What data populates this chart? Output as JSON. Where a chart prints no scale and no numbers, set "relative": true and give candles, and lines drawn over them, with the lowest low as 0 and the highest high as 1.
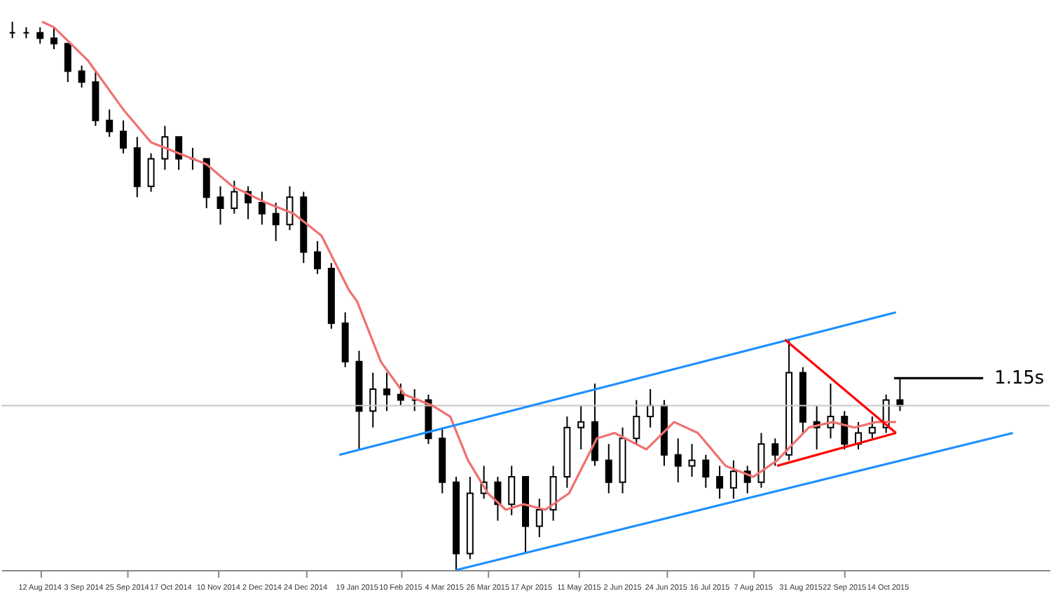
{
  "chart_data": {
    "type": "candlestick",
    "relative": true,
    "grid": false,
    "xlim": [
      "2014-07-27",
      "2015-12-31"
    ],
    "xticks": [
      {
        "value": "2014-08-12",
        "label": "12 Aug 2014"
      },
      {
        "value": "2014-09-03",
        "label": "3 Sep 2014"
      },
      {
        "value": "2014-09-25",
        "label": "25 Sep 2014"
      },
      {
        "value": "2014-10-17",
        "label": "17 Oct 2014"
      },
      {
        "value": "2014-11-10",
        "label": "10 Nov 2014"
      },
      {
        "value": "2014-12-02",
        "label": "2 Dec 2014"
      },
      {
        "value": "2014-12-24",
        "label": "24 Dec 2014"
      },
      {
        "value": "2015-01-19",
        "label": "19 Jan 2015"
      },
      {
        "value": "2015-02-10",
        "label": "10 Feb 2015"
      },
      {
        "value": "2015-03-04",
        "label": "4 Mar 2015"
      },
      {
        "value": "2015-03-26",
        "label": "26 Mar 2015"
      },
      {
        "value": "2015-04-17",
        "label": "17 Apr 2015"
      },
      {
        "value": "2015-05-11",
        "label": "11 May 2015"
      },
      {
        "value": "2015-06-02",
        "label": "2 Jun 2015"
      },
      {
        "value": "2015-06-24",
        "label": "24 Jun 2015"
      },
      {
        "value": "2015-07-16",
        "label": "16 Jul 2015"
      },
      {
        "value": "2015-08-07",
        "label": "7 Aug 2015"
      },
      {
        "value": "2015-08-31",
        "label": "31 Aug 2015"
      },
      {
        "value": "2015-09-22",
        "label": "22 Sep 2015"
      },
      {
        "value": "2015-10-14",
        "label": "14 Oct 2015"
      }
    ],
    "x": [
      "2014-07-29",
      "2014-08-05",
      "2014-08-12",
      "2014-08-19",
      "2014-08-26",
      "2014-09-02",
      "2014-09-09",
      "2014-09-16",
      "2014-09-23",
      "2014-09-30",
      "2014-10-07",
      "2014-10-14",
      "2014-10-21",
      "2014-10-28",
      "2014-11-04",
      "2014-11-11",
      "2014-11-18",
      "2014-11-25",
      "2014-12-02",
      "2014-12-09",
      "2014-12-16",
      "2014-12-23",
      "2014-12-30",
      "2015-01-06",
      "2015-01-13",
      "2015-01-20",
      "2015-01-27",
      "2015-02-03",
      "2015-02-10",
      "2015-02-17",
      "2015-02-24",
      "2015-03-03",
      "2015-03-10",
      "2015-03-17",
      "2015-03-24",
      "2015-03-31",
      "2015-04-07",
      "2015-04-14",
      "2015-04-21",
      "2015-04-28",
      "2015-05-05",
      "2015-05-12",
      "2015-05-19",
      "2015-05-26",
      "2015-06-02",
      "2015-06-09",
      "2015-06-16",
      "2015-06-23",
      "2015-06-30",
      "2015-07-07",
      "2015-07-14",
      "2015-07-21",
      "2015-07-28",
      "2015-08-04",
      "2015-08-11",
      "2015-08-18",
      "2015-08-25",
      "2015-09-01",
      "2015-09-08",
      "2015-09-15",
      "2015-09-22",
      "2015-09-29",
      "2015-10-06",
      "2015-10-13",
      "2015-10-20"
    ],
    "ohlc": [
      [
        0.98,
        1.0,
        0.97,
        0.98
      ],
      [
        0.98,
        0.99,
        0.97,
        0.98
      ],
      [
        0.98,
        0.99,
        0.96,
        0.97
      ],
      [
        0.97,
        0.99,
        0.95,
        0.96
      ],
      [
        0.96,
        0.96,
        0.89,
        0.91
      ],
      [
        0.91,
        0.92,
        0.88,
        0.89
      ],
      [
        0.89,
        0.91,
        0.81,
        0.82
      ],
      [
        0.82,
        0.84,
        0.79,
        0.8
      ],
      [
        0.8,
        0.82,
        0.76,
        0.77
      ],
      [
        0.77,
        0.79,
        0.68,
        0.7
      ],
      [
        0.7,
        0.76,
        0.69,
        0.75
      ],
      [
        0.75,
        0.81,
        0.73,
        0.79
      ],
      [
        0.79,
        0.79,
        0.73,
        0.75
      ],
      [
        0.75,
        0.77,
        0.73,
        0.75
      ],
      [
        0.75,
        0.75,
        0.66,
        0.68
      ],
      [
        0.68,
        0.7,
        0.63,
        0.66
      ],
      [
        0.66,
        0.71,
        0.65,
        0.69
      ],
      [
        0.69,
        0.7,
        0.64,
        0.67
      ],
      [
        0.67,
        0.69,
        0.63,
        0.65
      ],
      [
        0.65,
        0.67,
        0.6,
        0.63
      ],
      [
        0.63,
        0.7,
        0.62,
        0.68
      ],
      [
        0.68,
        0.69,
        0.56,
        0.58
      ],
      [
        0.58,
        0.6,
        0.54,
        0.55
      ],
      [
        0.55,
        0.56,
        0.44,
        0.45
      ],
      [
        0.45,
        0.47,
        0.37,
        0.38
      ],
      [
        0.38,
        0.4,
        0.22,
        0.29
      ],
      [
        0.29,
        0.36,
        0.26,
        0.33
      ],
      [
        0.33,
        0.36,
        0.29,
        0.32
      ],
      [
        0.32,
        0.34,
        0.3,
        0.31
      ],
      [
        0.31,
        0.33,
        0.29,
        0.31
      ],
      [
        0.31,
        0.32,
        0.23,
        0.24
      ],
      [
        0.24,
        0.26,
        0.14,
        0.16
      ],
      [
        0.16,
        0.17,
        0.0,
        0.03
      ],
      [
        0.03,
        0.17,
        0.02,
        0.14
      ],
      [
        0.14,
        0.19,
        0.13,
        0.16
      ],
      [
        0.16,
        0.17,
        0.09,
        0.12
      ],
      [
        0.12,
        0.19,
        0.1,
        0.17
      ],
      [
        0.17,
        0.17,
        0.03,
        0.08
      ],
      [
        0.08,
        0.13,
        0.06,
        0.11
      ],
      [
        0.11,
        0.19,
        0.09,
        0.17
      ],
      [
        0.17,
        0.28,
        0.15,
        0.26
      ],
      [
        0.26,
        0.3,
        0.22,
        0.27
      ],
      [
        0.27,
        0.34,
        0.19,
        0.2
      ],
      [
        0.2,
        0.23,
        0.14,
        0.16
      ],
      [
        0.16,
        0.26,
        0.14,
        0.24
      ],
      [
        0.24,
        0.31,
        0.23,
        0.28
      ],
      [
        0.28,
        0.33,
        0.26,
        0.3
      ],
      [
        0.3,
        0.31,
        0.19,
        0.21
      ],
      [
        0.21,
        0.24,
        0.16,
        0.19
      ],
      [
        0.19,
        0.23,
        0.17,
        0.2
      ],
      [
        0.2,
        0.21,
        0.15,
        0.17
      ],
      [
        0.17,
        0.19,
        0.13,
        0.15
      ],
      [
        0.15,
        0.2,
        0.13,
        0.18
      ],
      [
        0.18,
        0.19,
        0.14,
        0.16
      ],
      [
        0.16,
        0.25,
        0.15,
        0.23
      ],
      [
        0.23,
        0.24,
        0.19,
        0.21
      ],
      [
        0.21,
        0.42,
        0.2,
        0.36
      ],
      [
        0.36,
        0.37,
        0.25,
        0.27
      ],
      [
        0.27,
        0.3,
        0.22,
        0.26
      ],
      [
        0.26,
        0.34,
        0.24,
        0.28
      ],
      [
        0.28,
        0.29,
        0.22,
        0.23
      ],
      [
        0.23,
        0.27,
        0.22,
        0.25
      ],
      [
        0.25,
        0.28,
        0.24,
        0.26
      ],
      [
        0.26,
        0.32,
        0.25,
        0.31
      ],
      [
        0.31,
        0.35,
        0.29,
        0.3
      ]
    ],
    "series": [
      {
        "type": "line",
        "color": "#f07070",
        "x": [
          "2014-08-13",
          "2014-08-19",
          "2014-09-05",
          "2014-09-23",
          "2014-10-07",
          "2014-11-04",
          "2014-11-17",
          "2014-12-04",
          "2014-12-18",
          "2015-01-01",
          "2015-01-15",
          "2015-01-19",
          "2015-01-31",
          "2015-02-12",
          "2015-02-26",
          "2015-03-07",
          "2015-03-16",
          "2015-03-26",
          "2015-04-04",
          "2015-04-13",
          "2015-04-24",
          "2015-05-06",
          "2015-05-20",
          "2015-05-29",
          "2015-06-14",
          "2015-06-28",
          "2015-07-10",
          "2015-07-24",
          "2015-08-07",
          "2015-08-19",
          "2015-09-04",
          "2015-09-16",
          "2015-09-27",
          "2015-10-08",
          "2015-10-18"
        ],
        "values": [
          1.0,
          0.99,
          0.93,
          0.84,
          0.78,
          0.74,
          0.7,
          0.67,
          0.65,
          0.61,
          0.51,
          0.49,
          0.38,
          0.32,
          0.3,
          0.28,
          0.2,
          0.14,
          0.11,
          0.12,
          0.11,
          0.14,
          0.24,
          0.25,
          0.22,
          0.27,
          0.25,
          0.19,
          0.17,
          0.2,
          0.26,
          0.27,
          0.26,
          0.27,
          0.27
        ]
      },
      {
        "type": "line",
        "color": "#1e90ff",
        "x": [
          "2015-01-10",
          "2015-10-18"
        ],
        "values": [
          0.21,
          0.47
        ]
      },
      {
        "type": "line",
        "color": "#1e90ff",
        "x": [
          "2015-03-10",
          "2015-12-16"
        ],
        "values": [
          0.0,
          0.25
        ]
      },
      {
        "type": "line",
        "color": "#ff0000",
        "x": [
          "2015-08-23",
          "2015-10-18"
        ],
        "values": [
          0.42,
          0.25
        ]
      },
      {
        "type": "line",
        "color": "#ff0000",
        "x": [
          "2015-08-19",
          "2015-10-18"
        ],
        "values": [
          0.19,
          0.25
        ]
      },
      {
        "type": "line",
        "name": "1.15s",
        "color": "#000000",
        "x": [
          "2015-10-17",
          "2015-12-01"
        ],
        "values": [
          0.35,
          0.35
        ]
      }
    ],
    "ref_lines": [
      {
        "axis": "y",
        "value": 0.3,
        "color": "#c8c8c8"
      }
    ]
  }
}
